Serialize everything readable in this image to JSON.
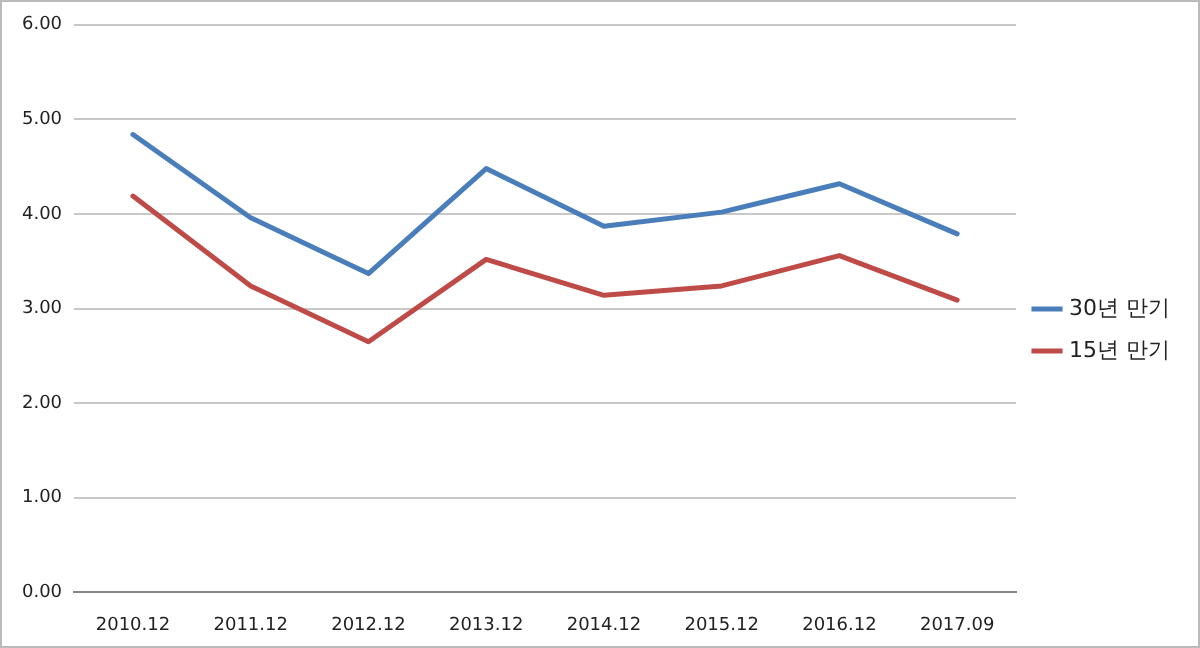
{
  "chart_data": {
    "type": "line",
    "categories": [
      "2010.12",
      "2011.12",
      "2012.12",
      "2013.12",
      "2014.12",
      "2015.12",
      "2016.12",
      "2017.09"
    ],
    "series": [
      {
        "name": "30년 만기",
        "color": "#4a7ebb",
        "values": [
          4.84,
          3.96,
          3.37,
          4.48,
          3.87,
          4.02,
          4.32,
          3.79
        ]
      },
      {
        "name": "15년 만기",
        "color": "#be4b48",
        "values": [
          4.19,
          3.24,
          2.65,
          3.52,
          3.14,
          3.24,
          3.56,
          3.09
        ]
      }
    ],
    "ylim": [
      0,
      6
    ],
    "yticks": [
      {
        "value": 0,
        "label": "0.00"
      },
      {
        "value": 1,
        "label": "1.00"
      },
      {
        "value": 2,
        "label": "2.00"
      },
      {
        "value": 3,
        "label": "3.00"
      },
      {
        "value": 4,
        "label": "4.00"
      },
      {
        "value": 5,
        "label": "5.00"
      },
      {
        "value": 6,
        "label": "6.00"
      }
    ],
    "grid": "y",
    "legend": "right",
    "marker": "none",
    "line_style": "solid"
  }
}
